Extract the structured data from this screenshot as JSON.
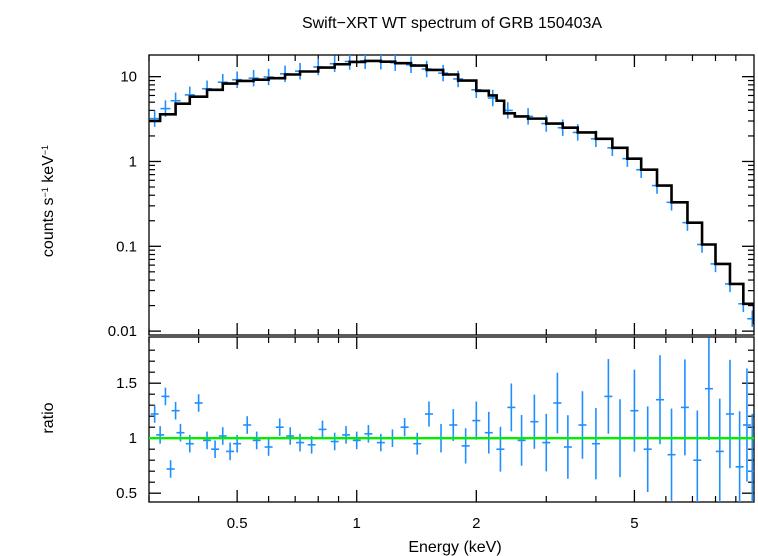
{
  "chart_data": [
    {
      "type": "line",
      "panel": "spectrum",
      "title": "Swift−XRT WT spectrum of GRB 150403A",
      "ylabel_main": "counts s",
      "ylabel_sup1": "−1",
      "ylabel_mid": " keV",
      "ylabel_sup2": "−1",
      "xscale": "log",
      "yscale": "log",
      "xlim": [
        0.3,
        10
      ],
      "ylim": [
        0.009,
        18
      ],
      "yticks": [
        0.01,
        0.1,
        1,
        10
      ],
      "ytick_labels": [
        "0.01",
        "0.1",
        "1",
        "10"
      ],
      "series": [
        {
          "role": "data",
          "color": "#1f8fff",
          "x": [
            0.31,
            0.33,
            0.35,
            0.38,
            0.42,
            0.46,
            0.5,
            0.55,
            0.6,
            0.66,
            0.72,
            0.8,
            0.88,
            0.96,
            1.05,
            1.15,
            1.25,
            1.37,
            1.5,
            1.65,
            1.8,
            2.0,
            2.2,
            2.4,
            2.7,
            3.0,
            3.3,
            3.6,
            4.0,
            4.4,
            4.8,
            5.2,
            5.7,
            6.2,
            6.8,
            7.4,
            8.0,
            8.7,
            9.4,
            9.9
          ],
          "y": [
            3.2,
            4.2,
            5.2,
            6.1,
            7.2,
            8.6,
            9.2,
            9.6,
            9.9,
            10.8,
            11.6,
            13.0,
            14.2,
            15.1,
            15.4,
            15.2,
            14.6,
            13.8,
            12.3,
            11.0,
            9.4,
            7.0,
            5.6,
            4.0,
            3.4,
            2.8,
            2.5,
            2.2,
            1.85,
            1.45,
            1.08,
            0.8,
            0.52,
            0.33,
            0.19,
            0.105,
            0.062,
            0.036,
            0.021,
            0.014
          ]
        },
        {
          "role": "model",
          "color": "#000000",
          "x": [
            0.3,
            0.32,
            0.35,
            0.38,
            0.42,
            0.46,
            0.5,
            0.55,
            0.6,
            0.66,
            0.72,
            0.8,
            0.88,
            0.96,
            1.05,
            1.15,
            1.25,
            1.37,
            1.5,
            1.65,
            1.8,
            2.0,
            2.15,
            2.25,
            2.35,
            2.5,
            2.7,
            3.0,
            3.3,
            3.6,
            4.0,
            4.4,
            4.8,
            5.2,
            5.7,
            6.2,
            6.8,
            7.4,
            8.0,
            8.7,
            9.4,
            10.0
          ],
          "y": [
            3.0,
            3.6,
            4.8,
            5.8,
            7.0,
            8.3,
            8.9,
            9.2,
            9.6,
            10.6,
            11.5,
            12.8,
            14.0,
            14.9,
            15.3,
            15.0,
            14.4,
            13.5,
            12.0,
            10.6,
            9.0,
            6.8,
            6.0,
            5.2,
            3.7,
            3.4,
            3.2,
            2.8,
            2.5,
            2.2,
            1.85,
            1.45,
            1.08,
            0.8,
            0.52,
            0.33,
            0.19,
            0.105,
            0.062,
            0.036,
            0.021,
            0.012
          ]
        }
      ]
    },
    {
      "type": "line",
      "panel": "ratio",
      "xlabel": "Energy (keV)",
      "ylabel": "ratio",
      "xscale": "log",
      "yscale": "linear",
      "xlim": [
        0.3,
        10
      ],
      "ylim": [
        0.42,
        1.92
      ],
      "xticks": [
        0.5,
        1,
        2,
        5
      ],
      "xtick_labels": [
        "0.5",
        "1",
        "2",
        "5"
      ],
      "yticks": [
        0.5,
        1,
        1.5
      ],
      "ytick_labels": [
        "0.5",
        "1",
        "1.5"
      ],
      "reference_line": {
        "y": 1,
        "color": "#00ee00"
      },
      "series": [
        {
          "role": "data",
          "color": "#1f8fff",
          "x": [
            0.31,
            0.32,
            0.33,
            0.34,
            0.35,
            0.36,
            0.38,
            0.4,
            0.42,
            0.44,
            0.46,
            0.48,
            0.5,
            0.53,
            0.56,
            0.6,
            0.64,
            0.68,
            0.72,
            0.77,
            0.82,
            0.88,
            0.94,
            1.0,
            1.07,
            1.15,
            1.23,
            1.32,
            1.42,
            1.52,
            1.63,
            1.75,
            1.88,
            2.0,
            2.15,
            2.3,
            2.45,
            2.6,
            2.8,
            3.0,
            3.2,
            3.4,
            3.7,
            4.0,
            4.3,
            4.6,
            5.0,
            5.4,
            5.8,
            6.2,
            6.7,
            7.2,
            7.7,
            8.2,
            8.7,
            9.2,
            9.6,
            9.9
          ],
          "y": [
            1.22,
            1.03,
            1.38,
            0.72,
            1.25,
            1.05,
            0.95,
            1.32,
            0.98,
            0.9,
            1.02,
            0.88,
            0.95,
            1.12,
            0.98,
            0.92,
            1.1,
            1.02,
            0.96,
            0.94,
            1.08,
            0.97,
            1.03,
            0.98,
            1.04,
            0.96,
            1.0,
            1.1,
            0.95,
            1.22,
            1.0,
            1.12,
            0.93,
            1.16,
            1.05,
            0.9,
            1.28,
            0.98,
            1.15,
            0.96,
            1.32,
            0.92,
            1.12,
            0.95,
            1.38,
            1.0,
            1.25,
            0.9,
            1.35,
            0.85,
            1.28,
            0.8,
            1.45,
            0.88,
            1.22,
            0.74,
            1.12,
            0.7
          ]
        }
      ]
    }
  ]
}
